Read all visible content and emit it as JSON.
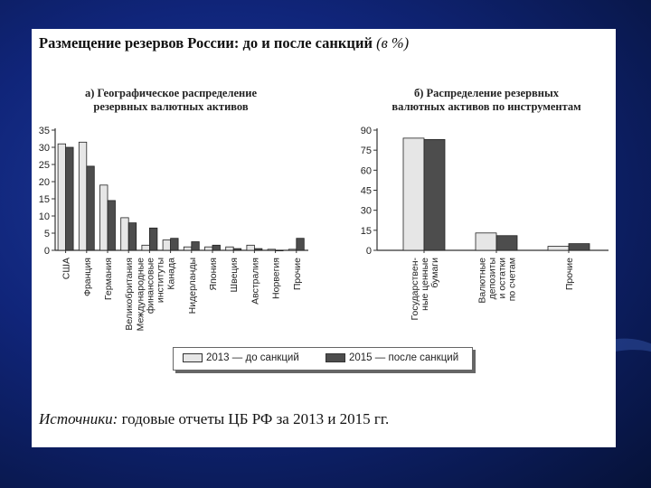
{
  "slide": {
    "title": "Размещение резервов России: до и после санкций",
    "title_unit": "(в %)",
    "source_label": "Источники:",
    "source_text": "годовые отчеты ЦБ РФ за 2013 и 2015 гг."
  },
  "legend": {
    "items": [
      {
        "year": "2013",
        "text": "— до санкций",
        "color": "#e6e6e6"
      },
      {
        "year": "2015",
        "text": "— после санкций",
        "color": "#4d4d4d"
      }
    ]
  },
  "chart_data": [
    {
      "type": "bar",
      "title": "а) Географическое распределение\nрезервных валютных активов",
      "categories": [
        "США",
        "Франция",
        "Германия",
        "Великобритания",
        "Международные\nфинансовые\nинституты",
        "Канада",
        "Нидерланды",
        "Япония",
        "Швеция",
        "Австралия",
        "Норвегия",
        "Прочие"
      ],
      "series": [
        {
          "name": "2013 — до санкций",
          "values": [
            31,
            31.5,
            19,
            9.5,
            1.5,
            3,
            1,
            1,
            1,
            1.5,
            0.3,
            0.3
          ]
        },
        {
          "name": "2015 — после санкций",
          "values": [
            30,
            24.5,
            14.5,
            8,
            6.5,
            3.5,
            2.5,
            1.5,
            0.5,
            0.5,
            0,
            3.5
          ]
        }
      ],
      "yticks": [
        0,
        5,
        10,
        15,
        20,
        25,
        30,
        35
      ],
      "ylim": [
        0,
        35
      ],
      "xlabel": "",
      "ylabel": "",
      "grid": false,
      "legend": "bottom-center"
    },
    {
      "type": "bar",
      "title": "б) Распределение резервных\nвалютных активов по инструментам",
      "categories": [
        "Государствен-\nные ценные\nбумаги",
        "Валютные\nдепозиты\nи остатки\nпо счетам",
        "Прочие"
      ],
      "series": [
        {
          "name": "2013 — до санкций",
          "values": [
            84,
            13,
            3
          ]
        },
        {
          "name": "2015 — после санкций",
          "values": [
            83,
            11,
            5
          ]
        }
      ],
      "yticks": [
        0,
        15,
        30,
        45,
        60,
        75,
        90
      ],
      "ylim": [
        0,
        90
      ],
      "xlabel": "",
      "ylabel": "",
      "grid": false,
      "legend": "bottom-center"
    }
  ]
}
